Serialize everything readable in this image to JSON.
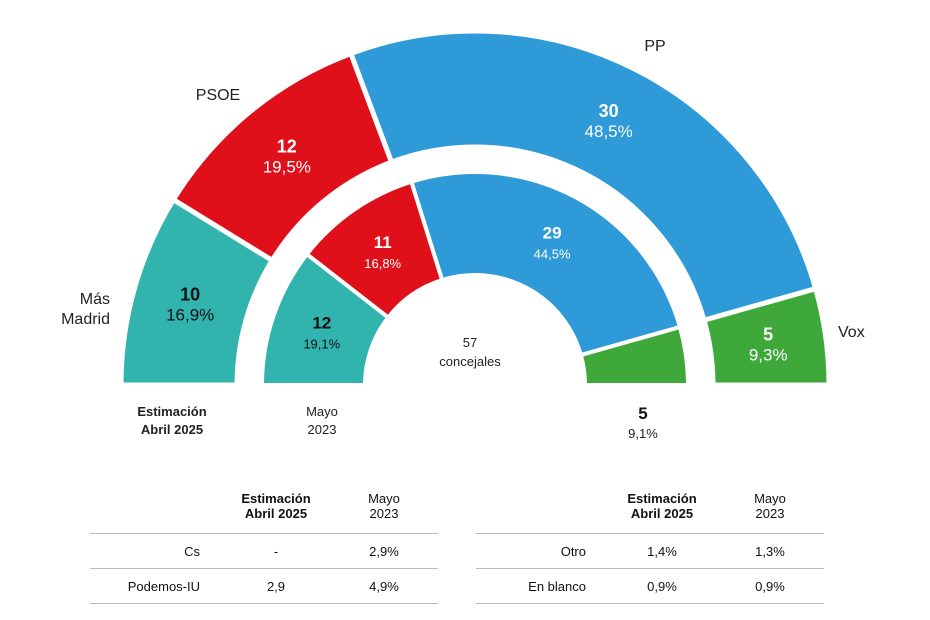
{
  "chart_data": {
    "type": "parliament-semicircle",
    "center_label": {
      "value": "57",
      "unit": "concejales"
    },
    "series": [
      {
        "name": "Estimación Abril 2025",
        "parties": [
          {
            "party": "Más Madrid",
            "seats": 10,
            "pct": "16,9%",
            "color": "#31b3ae"
          },
          {
            "party": "PSOE",
            "seats": 12,
            "pct": "19,5%",
            "color": "#e0101b"
          },
          {
            "party": "PP",
            "seats": 30,
            "pct": "48,5%",
            "color": "#2f9ad8"
          },
          {
            "party": "Vox",
            "seats": 5,
            "pct": "9,3%",
            "color": "#3ea93a"
          }
        ]
      },
      {
        "name": "Mayo 2023",
        "parties": [
          {
            "party": "Más Madrid",
            "seats": 12,
            "pct": "19,1%",
            "color": "#31b3ae"
          },
          {
            "party": "PSOE",
            "seats": 11,
            "pct": "16,8%",
            "color": "#e0101b"
          },
          {
            "party": "PP",
            "seats": 29,
            "pct": "44,5%",
            "color": "#2f9ad8"
          },
          {
            "party": "Vox",
            "seats": 5,
            "pct": "9,1%",
            "color": "#3ea93a"
          }
        ]
      }
    ],
    "outer_labels": {
      "mas_madrid_line1": "Más",
      "mas_madrid_line2": "Madrid",
      "psoe": "PSOE",
      "pp": "PP",
      "vox": "Vox"
    },
    "bottom_labels": {
      "outer_line1": "Estimación",
      "outer_line2": "Abril 2025",
      "inner_line1": "Mayo",
      "inner_line2": "2023"
    }
  },
  "tables": [
    {
      "header": {
        "estimate_line1": "Estimación",
        "estimate_line2": "Abril 2025",
        "prev_line1": "Mayo",
        "prev_line2": "2023"
      },
      "rows": [
        {
          "label": "Cs",
          "estimate": "-",
          "prev": "2,9%"
        },
        {
          "label": "Podemos-IU",
          "estimate": "2,9",
          "prev": "4,9%"
        }
      ]
    },
    {
      "header": {
        "estimate_line1": "Estimación",
        "estimate_line2": "Abril 2025",
        "prev_line1": "Mayo",
        "prev_line2": "2023"
      },
      "rows": [
        {
          "label": "Otro",
          "estimate": "1,4%",
          "prev": "1,3%"
        },
        {
          "label": "En blanco",
          "estimate": "0,9%",
          "prev": "0,9%"
        }
      ]
    }
  ]
}
